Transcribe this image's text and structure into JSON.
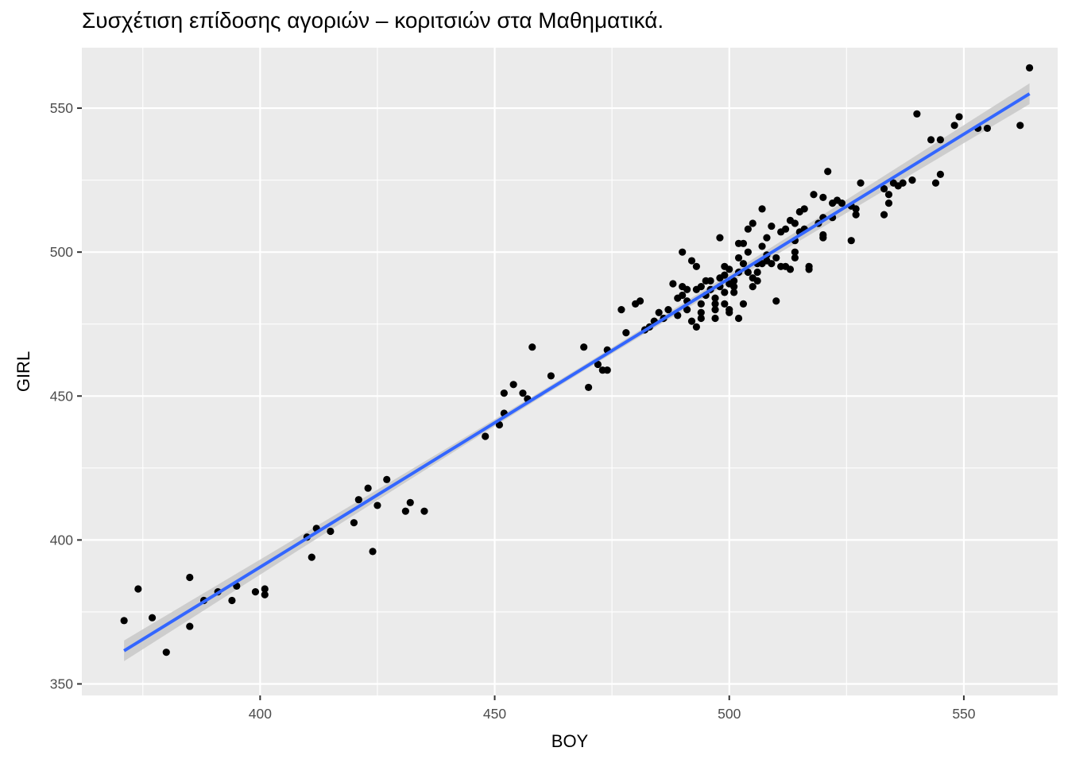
{
  "chart_data": {
    "type": "scatter",
    "title": "Συσχέτιση επίδοσης αγοριών – κοριτσιών στα Μαθηματικά.",
    "xlabel": "BOY",
    "ylabel": "GIRL",
    "xlim": [
      362,
      570
    ],
    "ylim": [
      346,
      571
    ],
    "x_ticks": [
      400,
      450,
      500,
      550
    ],
    "y_ticks": [
      350,
      400,
      450,
      500,
      550
    ],
    "grid": true,
    "legend": "none",
    "colors": {
      "panel_background": "#ebebeb",
      "grid": "#ffffff",
      "points": "#000000",
      "fit_line": "#3366ff",
      "confidence_band": "#c8c8c8"
    },
    "series": [
      {
        "points": [
          [
            371,
            372
          ],
          [
            374,
            383
          ],
          [
            377,
            373
          ],
          [
            380,
            361
          ],
          [
            385,
            387
          ],
          [
            385,
            370
          ],
          [
            388,
            379
          ],
          [
            391,
            382
          ],
          [
            394,
            379
          ],
          [
            395,
            384
          ],
          [
            399,
            382
          ],
          [
            401,
            383
          ],
          [
            401,
            381
          ],
          [
            410,
            401
          ],
          [
            411,
            394
          ],
          [
            412,
            404
          ],
          [
            415,
            403
          ],
          [
            420,
            406
          ],
          [
            421,
            414
          ],
          [
            423,
            418
          ],
          [
            424,
            396
          ],
          [
            425,
            412
          ],
          [
            427,
            421
          ],
          [
            431,
            410
          ],
          [
            432,
            413
          ],
          [
            435,
            410
          ],
          [
            448,
            436
          ],
          [
            451,
            440
          ],
          [
            452,
            444
          ],
          [
            452,
            451
          ],
          [
            454,
            454
          ],
          [
            456,
            451
          ],
          [
            457,
            449
          ],
          [
            458,
            467
          ],
          [
            462,
            457
          ],
          [
            469,
            467
          ],
          [
            470,
            453
          ],
          [
            472,
            461
          ],
          [
            473,
            459
          ],
          [
            474,
            466
          ],
          [
            474,
            459
          ],
          [
            477,
            480
          ],
          [
            478,
            472
          ],
          [
            480,
            482
          ],
          [
            481,
            483
          ],
          [
            482,
            473
          ],
          [
            483,
            474
          ],
          [
            484,
            476
          ],
          [
            485,
            479
          ],
          [
            486,
            477
          ],
          [
            487,
            480
          ],
          [
            488,
            489
          ],
          [
            489,
            478
          ],
          [
            489,
            484
          ],
          [
            490,
            500
          ],
          [
            490,
            488
          ],
          [
            490,
            485
          ],
          [
            491,
            483
          ],
          [
            491,
            480
          ],
          [
            491,
            487
          ],
          [
            492,
            497
          ],
          [
            492,
            476
          ],
          [
            493,
            495
          ],
          [
            493,
            487
          ],
          [
            493,
            474
          ],
          [
            494,
            488
          ],
          [
            494,
            482
          ],
          [
            494,
            479
          ],
          [
            494,
            477
          ],
          [
            495,
            490
          ],
          [
            495,
            485
          ],
          [
            496,
            487
          ],
          [
            496,
            490
          ],
          [
            497,
            484
          ],
          [
            497,
            482
          ],
          [
            497,
            480
          ],
          [
            497,
            477
          ],
          [
            498,
            505
          ],
          [
            498,
            491
          ],
          [
            498,
            488
          ],
          [
            499,
            492
          ],
          [
            499,
            495
          ],
          [
            499,
            486
          ],
          [
            499,
            482
          ],
          [
            500,
            489
          ],
          [
            500,
            494
          ],
          [
            500,
            480
          ],
          [
            500,
            479
          ],
          [
            501,
            490
          ],
          [
            501,
            488
          ],
          [
            501,
            486
          ],
          [
            502,
            503
          ],
          [
            502,
            498
          ],
          [
            502,
            493
          ],
          [
            502,
            477
          ],
          [
            503,
            503
          ],
          [
            503,
            496
          ],
          [
            503,
            482
          ],
          [
            504,
            508
          ],
          [
            504,
            500
          ],
          [
            504,
            493
          ],
          [
            505,
            510
          ],
          [
            505,
            491
          ],
          [
            505,
            488
          ],
          [
            506,
            496
          ],
          [
            506,
            493
          ],
          [
            506,
            490
          ],
          [
            507,
            515
          ],
          [
            507,
            502
          ],
          [
            507,
            496
          ],
          [
            508,
            505
          ],
          [
            508,
            499
          ],
          [
            508,
            497
          ],
          [
            509,
            509
          ],
          [
            509,
            496
          ],
          [
            510,
            498
          ],
          [
            510,
            483
          ],
          [
            511,
            507
          ],
          [
            511,
            495
          ],
          [
            512,
            508
          ],
          [
            512,
            495
          ],
          [
            513,
            511
          ],
          [
            513,
            494
          ],
          [
            514,
            510
          ],
          [
            514,
            504
          ],
          [
            514,
            500
          ],
          [
            514,
            498
          ],
          [
            515,
            514
          ],
          [
            515,
            507
          ],
          [
            516,
            515
          ],
          [
            516,
            508
          ],
          [
            517,
            495
          ],
          [
            517,
            494
          ],
          [
            518,
            520
          ],
          [
            519,
            510
          ],
          [
            520,
            512
          ],
          [
            520,
            519
          ],
          [
            520,
            506
          ],
          [
            520,
            505
          ],
          [
            521,
            528
          ],
          [
            522,
            517
          ],
          [
            522,
            512
          ],
          [
            523,
            518
          ],
          [
            524,
            517
          ],
          [
            526,
            504
          ],
          [
            526,
            516
          ],
          [
            527,
            515
          ],
          [
            527,
            513
          ],
          [
            528,
            524
          ],
          [
            533,
            522
          ],
          [
            533,
            513
          ],
          [
            534,
            520
          ],
          [
            534,
            517
          ],
          [
            535,
            524
          ],
          [
            536,
            523
          ],
          [
            537,
            524
          ],
          [
            539,
            525
          ],
          [
            540,
            548
          ],
          [
            543,
            539
          ],
          [
            544,
            524
          ],
          [
            545,
            527
          ],
          [
            545,
            539
          ],
          [
            548,
            544
          ],
          [
            549,
            547
          ],
          [
            553,
            543
          ],
          [
            555,
            543
          ],
          [
            562,
            544
          ],
          [
            564,
            564
          ]
        ]
      }
    ],
    "fit": {
      "method": "linear",
      "x_range": [
        371,
        564
      ],
      "y_at_x_min": 361.5,
      "y_at_x_max": 555,
      "ci_halfwidth_ends": 3.6,
      "ci_halfwidth_center": 1.0
    }
  }
}
